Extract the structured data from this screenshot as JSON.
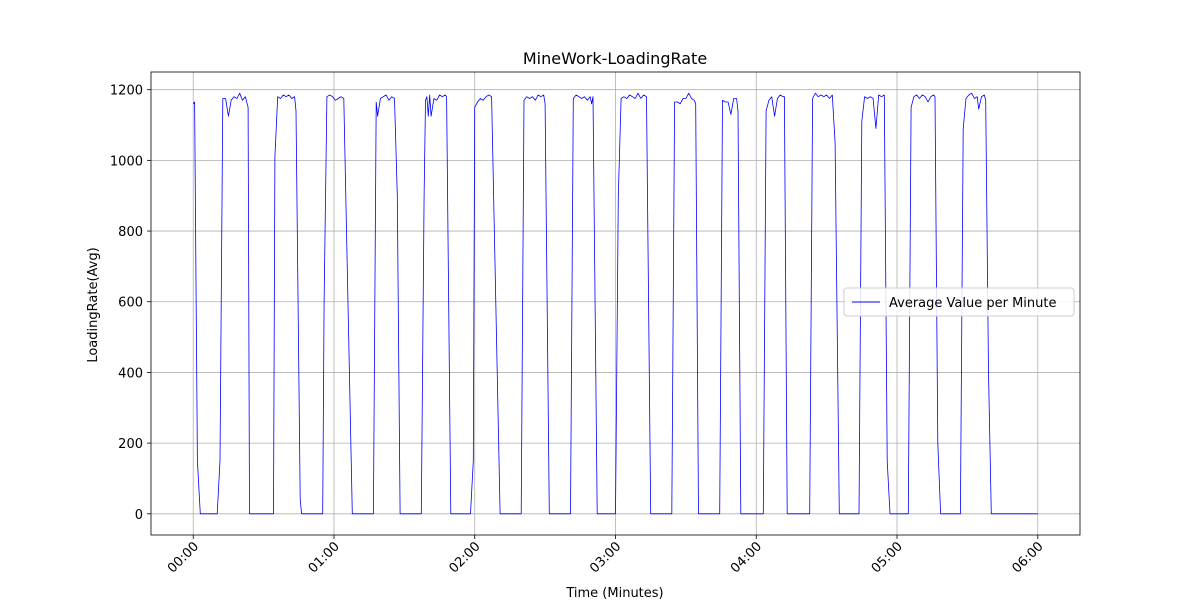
{
  "chart_data": {
    "type": "line",
    "title": "MineWork-LoadingRate",
    "xlabel": "Time (Minutes)",
    "ylabel": "LoadingRate(Avg)",
    "xlim": [
      -0.3,
      6.3
    ],
    "ylim": [
      -60,
      1250
    ],
    "x_ticks": [
      0,
      1,
      2,
      3,
      4,
      5,
      6
    ],
    "x_tick_labels": [
      "00:00",
      "01:00",
      "02:00",
      "03:00",
      "04:00",
      "05:00",
      "06:00"
    ],
    "y_ticks": [
      0,
      200,
      400,
      600,
      800,
      1000,
      1200
    ],
    "y_tick_labels": [
      "0",
      "200",
      "400",
      "600",
      "800",
      "1000",
      "1200"
    ],
    "grid": true,
    "legend_position": "center-right",
    "series": [
      {
        "name": "Average Value per Minute",
        "color": "#0000ff",
        "points": [
          [
            0.0,
            1160
          ],
          [
            0.01,
            1165
          ],
          [
            0.03,
            150
          ],
          [
            0.05,
            0
          ],
          [
            0.17,
            0
          ],
          [
            0.19,
            150
          ],
          [
            0.21,
            1175
          ],
          [
            0.23,
            1175
          ],
          [
            0.25,
            1125
          ],
          [
            0.27,
            1170
          ],
          [
            0.29,
            1180
          ],
          [
            0.31,
            1175
          ],
          [
            0.33,
            1190
          ],
          [
            0.35,
            1170
          ],
          [
            0.37,
            1180
          ],
          [
            0.39,
            1150
          ],
          [
            0.4,
            0
          ],
          [
            0.57,
            0
          ],
          [
            0.58,
            1010
          ],
          [
            0.6,
            1180
          ],
          [
            0.62,
            1175
          ],
          [
            0.64,
            1185
          ],
          [
            0.66,
            1180
          ],
          [
            0.68,
            1185
          ],
          [
            0.7,
            1175
          ],
          [
            0.72,
            1180
          ],
          [
            0.73,
            1140
          ],
          [
            0.76,
            40
          ],
          [
            0.77,
            0
          ],
          [
            0.92,
            0
          ],
          [
            0.93,
            600
          ],
          [
            0.95,
            1180
          ],
          [
            0.97,
            1185
          ],
          [
            0.99,
            1180
          ],
          [
            1.01,
            1170
          ],
          [
            1.03,
            1175
          ],
          [
            1.05,
            1180
          ],
          [
            1.07,
            1175
          ],
          [
            1.13,
            0
          ],
          [
            1.28,
            0
          ],
          [
            1.3,
            1165
          ],
          [
            1.31,
            1125
          ],
          [
            1.33,
            1175
          ],
          [
            1.35,
            1180
          ],
          [
            1.37,
            1185
          ],
          [
            1.39,
            1170
          ],
          [
            1.41,
            1180
          ],
          [
            1.43,
            1175
          ],
          [
            1.45,
            900
          ],
          [
            1.47,
            0
          ],
          [
            1.62,
            0
          ],
          [
            1.64,
            900
          ],
          [
            1.65,
            1170
          ],
          [
            1.66,
            1180
          ],
          [
            1.67,
            1125
          ],
          [
            1.68,
            1185
          ],
          [
            1.69,
            1125
          ],
          [
            1.71,
            1175
          ],
          [
            1.73,
            1170
          ],
          [
            1.75,
            1185
          ],
          [
            1.77,
            1180
          ],
          [
            1.79,
            1185
          ],
          [
            1.8,
            1180
          ],
          [
            1.83,
            0
          ],
          [
            1.97,
            0
          ],
          [
            1.99,
            150
          ],
          [
            2.0,
            1150
          ],
          [
            2.02,
            1165
          ],
          [
            2.04,
            1175
          ],
          [
            2.06,
            1170
          ],
          [
            2.08,
            1180
          ],
          [
            2.1,
            1185
          ],
          [
            2.12,
            1180
          ],
          [
            2.18,
            0
          ],
          [
            2.33,
            0
          ],
          [
            2.35,
            1170
          ],
          [
            2.37,
            1180
          ],
          [
            2.39,
            1175
          ],
          [
            2.41,
            1180
          ],
          [
            2.43,
            1170
          ],
          [
            2.45,
            1185
          ],
          [
            2.47,
            1180
          ],
          [
            2.49,
            1185
          ],
          [
            2.5,
            1160
          ],
          [
            2.53,
            0
          ],
          [
            2.68,
            0
          ],
          [
            2.7,
            1175
          ],
          [
            2.72,
            1185
          ],
          [
            2.74,
            1180
          ],
          [
            2.76,
            1175
          ],
          [
            2.78,
            1180
          ],
          [
            2.8,
            1170
          ],
          [
            2.82,
            1180
          ],
          [
            2.83,
            1160
          ],
          [
            2.84,
            1180
          ],
          [
            2.87,
            0
          ],
          [
            3.0,
            0
          ],
          [
            3.02,
            900
          ],
          [
            3.04,
            1175
          ],
          [
            3.06,
            1180
          ],
          [
            3.08,
            1175
          ],
          [
            3.1,
            1185
          ],
          [
            3.12,
            1180
          ],
          [
            3.14,
            1175
          ],
          [
            3.16,
            1190
          ],
          [
            3.18,
            1175
          ],
          [
            3.2,
            1185
          ],
          [
            3.22,
            1180
          ],
          [
            3.25,
            0
          ],
          [
            3.4,
            0
          ],
          [
            3.42,
            1165
          ],
          [
            3.44,
            1165
          ],
          [
            3.46,
            1160
          ],
          [
            3.48,
            1175
          ],
          [
            3.5,
            1175
          ],
          [
            3.52,
            1190
          ],
          [
            3.54,
            1175
          ],
          [
            3.56,
            1170
          ],
          [
            3.57,
            1160
          ],
          [
            3.59,
            0
          ],
          [
            3.74,
            0
          ],
          [
            3.76,
            1170
          ],
          [
            3.78,
            1165
          ],
          [
            3.8,
            1165
          ],
          [
            3.82,
            1130
          ],
          [
            3.84,
            1175
          ],
          [
            3.86,
            1175
          ],
          [
            3.87,
            1140
          ],
          [
            3.89,
            0
          ],
          [
            4.05,
            0
          ],
          [
            4.07,
            1140
          ],
          [
            4.09,
            1170
          ],
          [
            4.11,
            1180
          ],
          [
            4.13,
            1125
          ],
          [
            4.15,
            1175
          ],
          [
            4.17,
            1185
          ],
          [
            4.19,
            1180
          ],
          [
            4.2,
            1180
          ],
          [
            4.22,
            0
          ],
          [
            4.38,
            0
          ],
          [
            4.4,
            1175
          ],
          [
            4.42,
            1190
          ],
          [
            4.44,
            1180
          ],
          [
            4.46,
            1185
          ],
          [
            4.48,
            1180
          ],
          [
            4.5,
            1185
          ],
          [
            4.52,
            1175
          ],
          [
            4.54,
            1185
          ],
          [
            4.56,
            1050
          ],
          [
            4.59,
            0
          ],
          [
            4.73,
            0
          ],
          [
            4.75,
            1110
          ],
          [
            4.77,
            1180
          ],
          [
            4.79,
            1175
          ],
          [
            4.81,
            1180
          ],
          [
            4.83,
            1175
          ],
          [
            4.85,
            1090
          ],
          [
            4.87,
            1185
          ],
          [
            4.89,
            1180
          ],
          [
            4.91,
            1185
          ],
          [
            4.93,
            150
          ],
          [
            4.95,
            0
          ],
          [
            5.08,
            0
          ],
          [
            5.1,
            1150
          ],
          [
            5.12,
            1180
          ],
          [
            5.14,
            1185
          ],
          [
            5.16,
            1175
          ],
          [
            5.18,
            1185
          ],
          [
            5.2,
            1180
          ],
          [
            5.22,
            1165
          ],
          [
            5.24,
            1180
          ],
          [
            5.26,
            1185
          ],
          [
            5.27,
            1180
          ],
          [
            5.29,
            200
          ],
          [
            5.31,
            0
          ],
          [
            5.45,
            0
          ],
          [
            5.47,
            1090
          ],
          [
            5.49,
            1175
          ],
          [
            5.51,
            1185
          ],
          [
            5.53,
            1190
          ],
          [
            5.55,
            1175
          ],
          [
            5.57,
            1180
          ],
          [
            5.58,
            1145
          ],
          [
            5.6,
            1180
          ],
          [
            5.62,
            1185
          ],
          [
            5.63,
            1170
          ],
          [
            5.65,
            400
          ],
          [
            5.67,
            0
          ],
          [
            6.0,
            0
          ]
        ]
      }
    ]
  }
}
